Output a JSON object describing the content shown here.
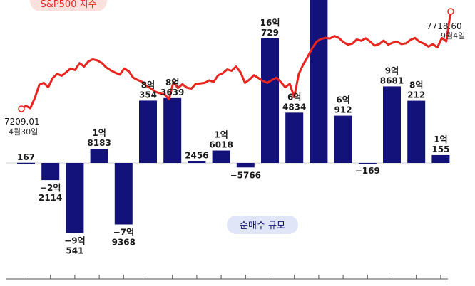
{
  "chart_data": {
    "type": "bar",
    "series": [
      {
        "name": "순매수 규모",
        "values": [
          167,
          -22114,
          -90541,
          18183,
          -79368,
          80354,
          83639,
          2456,
          16018,
          -5766,
          160729,
          64834,
          220000,
          60912,
          -169,
          98681,
          80212,
          10155
        ],
        "value_labels": [
          [
            "167"
          ],
          [
            "−2억",
            "2114"
          ],
          [
            "−9억",
            "541"
          ],
          [
            "1억",
            "8183"
          ],
          [
            "−7억",
            "9368"
          ],
          [
            "8억",
            "354"
          ],
          [
            "8억",
            "3639"
          ],
          [
            "2456"
          ],
          [
            "1억",
            "6018"
          ],
          [
            "−5766"
          ],
          [
            "16억",
            "729"
          ],
          [
            "6억",
            "4834"
          ],
          [],
          [
            "6억",
            "912"
          ],
          [
            "−169"
          ],
          [
            "9억",
            "8681"
          ],
          [
            "8억",
            "212"
          ],
          [
            "1억",
            "155"
          ]
        ],
        "color": "#12127a"
      },
      {
        "name": "S&P500 지수",
        "values": [
          7209.01,
          7225,
          7212,
          7265,
          7335,
          7345,
          7322,
          7370,
          7392,
          7382,
          7400,
          7420,
          7412,
          7448,
          7430,
          7458,
          7468,
          7462,
          7448,
          7425,
          7410,
          7398,
          7388,
          7420,
          7405,
          7372,
          7360,
          7350,
          7328,
          7315,
          7298,
          7290,
          7284,
          7260,
          7350,
          7318,
          7338,
          7320,
          7315,
          7340,
          7342,
          7345,
          7358,
          7350,
          7385,
          7395,
          7415,
          7408,
          7430,
          7400,
          7345,
          7362,
          7385,
          7370,
          7355,
          7345,
          7360,
          7372,
          7350,
          7322,
          7340,
          7270,
          7390,
          7440,
          7480,
          7525,
          7560,
          7575,
          7580,
          7577,
          7590,
          7580,
          7558,
          7545,
          7550,
          7572,
          7565,
          7578,
          7560,
          7540,
          7548,
          7566,
          7545,
          7555,
          7560,
          7548,
          7552,
          7570,
          7580,
          7560,
          7550,
          7535,
          7548,
          7530,
          7580,
          7562,
          7718.6
        ],
        "color": "#e8251f"
      }
    ],
    "annotations": {
      "start_value": "7209.01",
      "start_date": "4월30일",
      "end_value": "7718.60",
      "end_date": "9월4일"
    },
    "legend_labels": {
      "line": "S&P500 지수",
      "bar": "순매수 규모"
    },
    "ylim": [
      -130000,
      220000
    ]
  }
}
